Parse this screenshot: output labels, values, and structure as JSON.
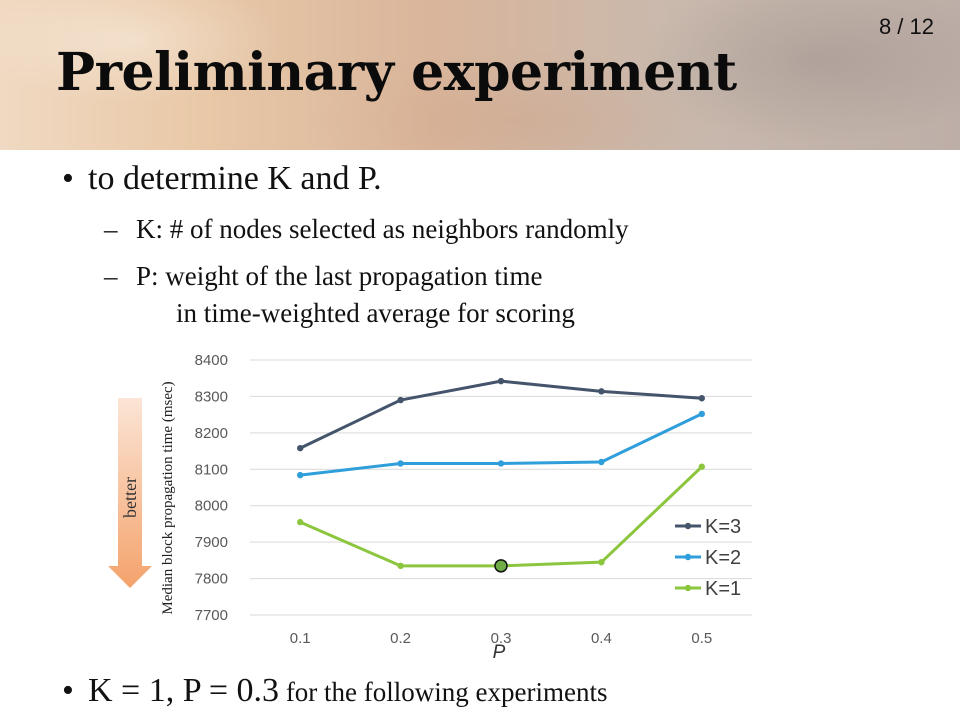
{
  "slide": {
    "page_number": "8 / 12",
    "title": "Preliminary experiment",
    "bullet1": "to determine K and P.",
    "sub1": "K: # of nodes selected as neighbors randomly",
    "sub2_line1": "P: weight of the last propagation time",
    "sub2_line2": "in time-weighted average for scoring",
    "bullet2_main": "K = 1, P = 0.3",
    "bullet2_tail": " for the following experiments",
    "bullet_glyph": "•",
    "dash_glyph": "–",
    "better_label": "better"
  },
  "chart_data": {
    "type": "line",
    "x": [
      "0.1",
      "0.2",
      "0.3",
      "0.4",
      "0.5"
    ],
    "xlabel": "P",
    "ylabel": "Median block propagation time (msec)",
    "ylim": [
      7700,
      8400
    ],
    "yticks": [
      7700,
      7800,
      7900,
      8000,
      8100,
      8200,
      8300,
      8400
    ],
    "grid": true,
    "legend_position": "bottom-right",
    "series": [
      {
        "name": "K=3",
        "color": "#44546a",
        "values": [
          8158,
          8290,
          8342,
          8314,
          8295
        ]
      },
      {
        "name": "K=2",
        "color": "#2f9fdb",
        "values": [
          8084,
          8116,
          8116,
          8120,
          8252
        ]
      },
      {
        "name": "K=1",
        "color": "#8cc63f",
        "values": [
          7955,
          7835,
          7835,
          7845,
          8107
        ]
      }
    ],
    "highlight": {
      "series": "K=1",
      "x": "0.3",
      "value": 7835,
      "fill": "#70ad47"
    }
  },
  "colors": {
    "better_arrow_top": "#fbe5d6",
    "better_arrow_bottom": "#f4a26b",
    "grid": "#d9d9d9",
    "tick_text": "#595959"
  }
}
